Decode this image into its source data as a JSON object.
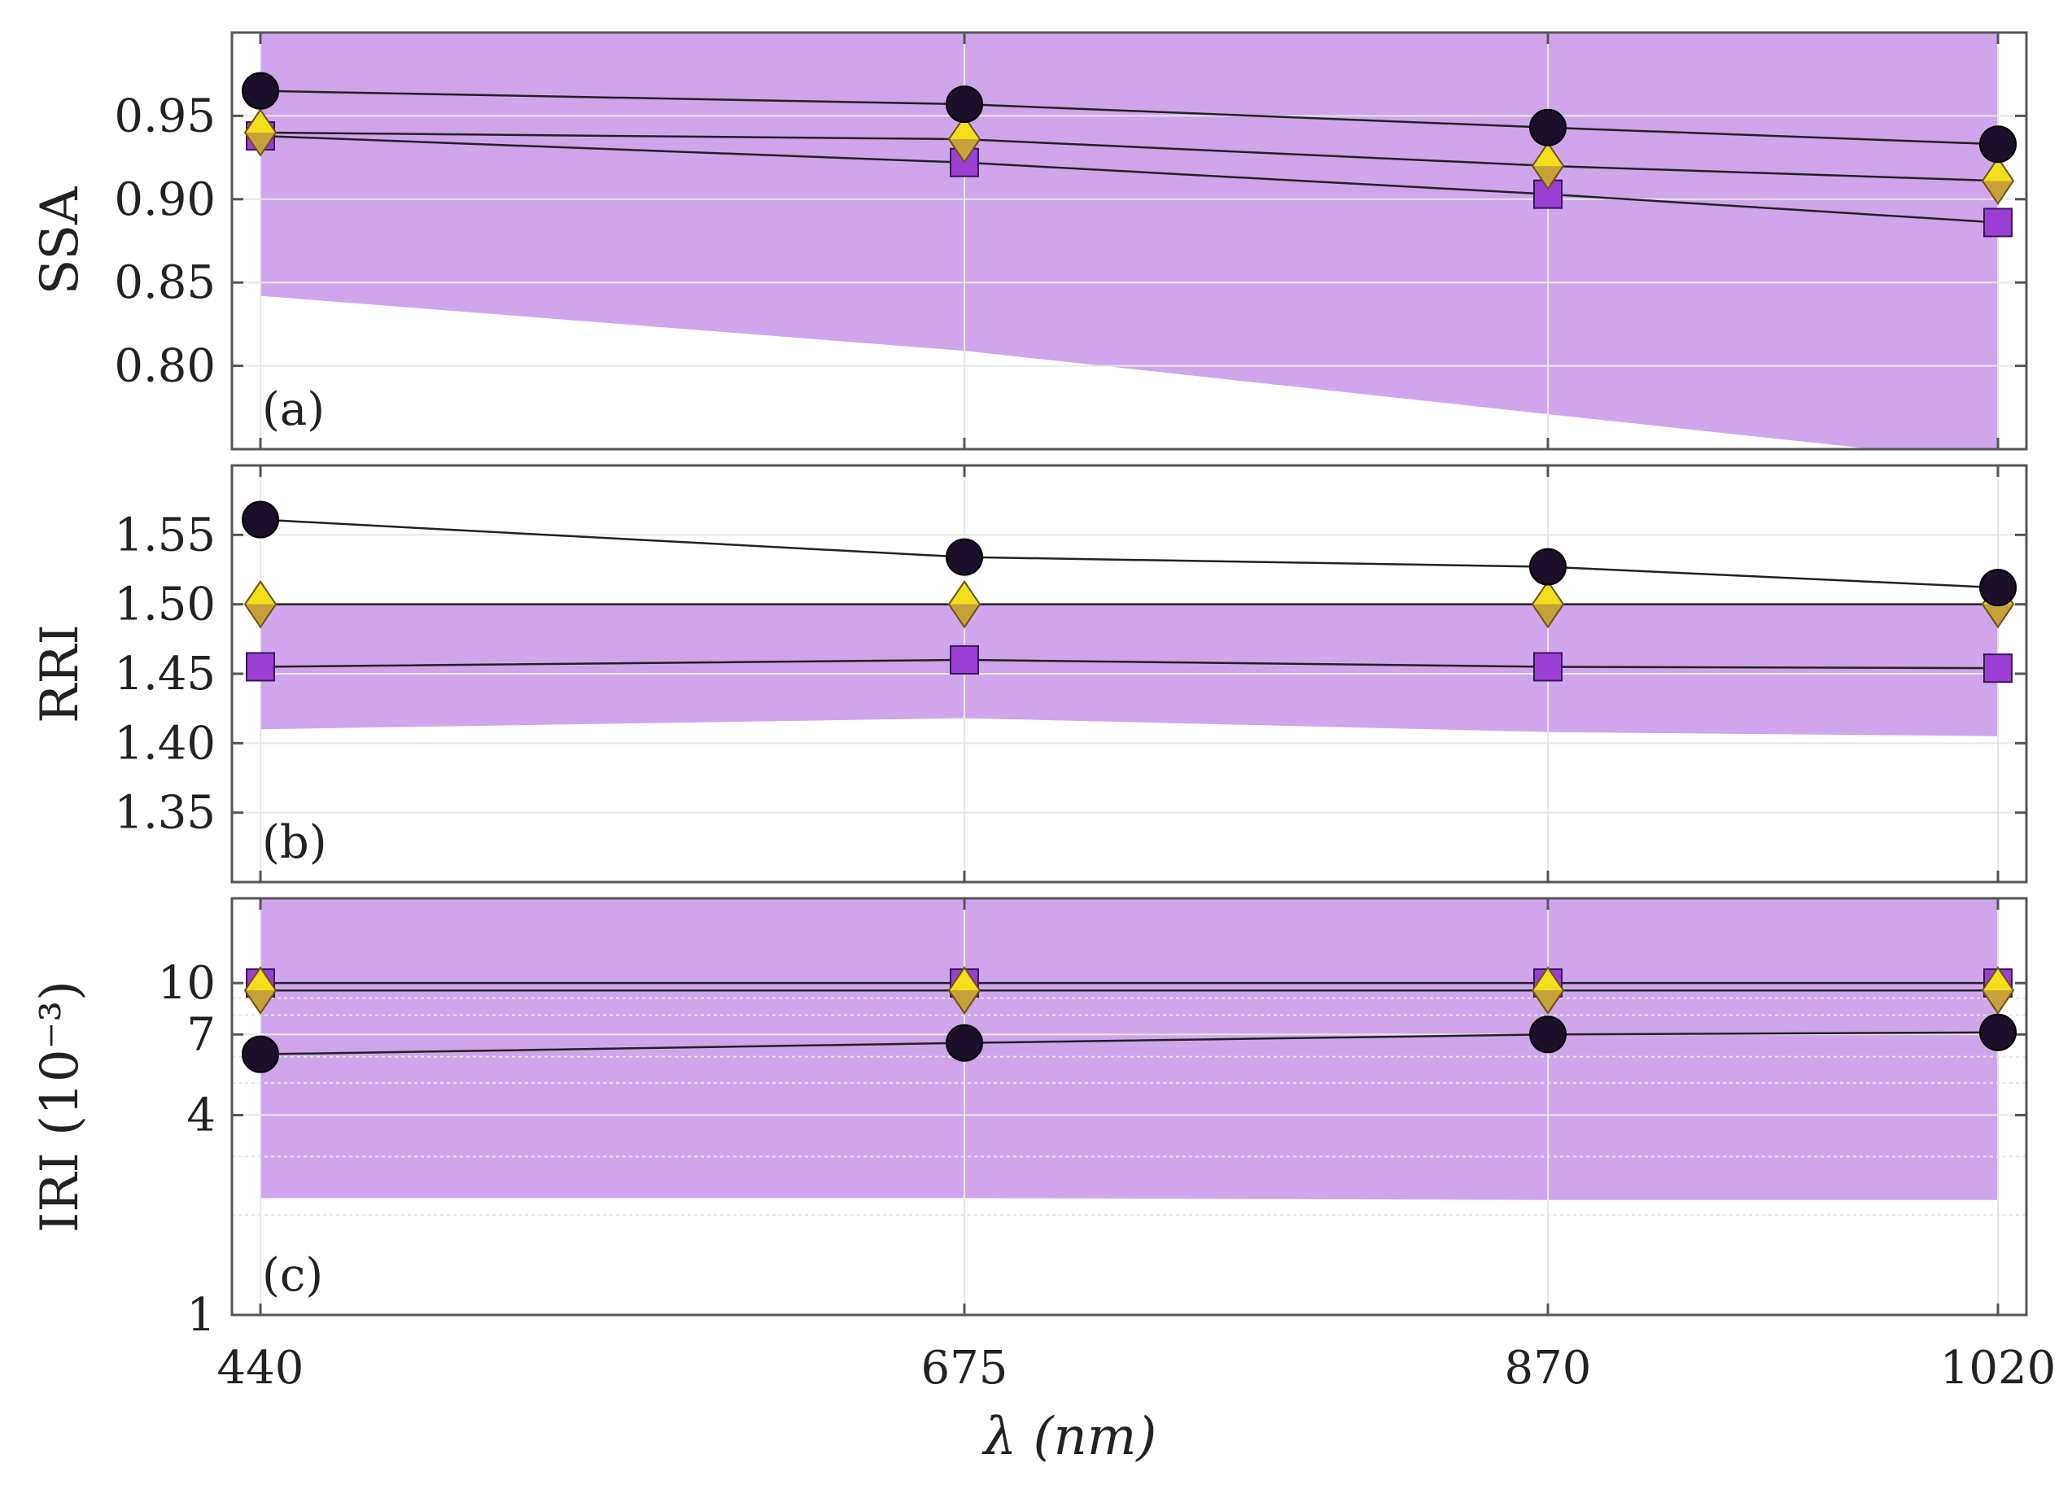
{
  "chart_data": {
    "type": "line",
    "shared_x": {
      "label": "λ (nm)",
      "values": [
        440,
        675,
        870,
        1020
      ],
      "tick_labels": [
        "440",
        "675",
        "870",
        "1020"
      ]
    },
    "colors": {
      "band": "#cfa6ec",
      "circle": "#1b0f2a",
      "square": "#9b3fd4",
      "diamond_top": "#f2de1a",
      "diamond_bottom": "#c9a13a",
      "line": "#222222"
    },
    "panels": [
      {
        "id": "ssa",
        "label": "(a)",
        "ylabel": "SSA",
        "scale": "linear",
        "ylim": [
          0.75,
          1.0
        ],
        "yticks": [
          0.8,
          0.85,
          0.9,
          0.95
        ],
        "ytick_labels": [
          "0.80",
          "0.85",
          "0.90",
          "0.95"
        ],
        "band": {
          "lower": [
            0.842,
            0.809,
            0.771,
            0.742
          ],
          "upper": [
            1.0,
            1.0,
            1.0,
            1.0
          ]
        },
        "series": [
          {
            "name": "circle",
            "marker": "circle",
            "values": [
              0.965,
              0.957,
              0.943,
              0.933
            ]
          },
          {
            "name": "diamond",
            "marker": "diamond",
            "values": [
              0.94,
              0.936,
              0.92,
              0.911
            ]
          },
          {
            "name": "square",
            "marker": "square",
            "values": [
              0.938,
              0.922,
              0.903,
              0.886
            ]
          }
        ]
      },
      {
        "id": "rri",
        "label": "(b)",
        "ylabel": "RRI",
        "scale": "linear",
        "ylim": [
          1.3,
          1.6
        ],
        "yticks": [
          1.35,
          1.4,
          1.45,
          1.5,
          1.55
        ],
        "ytick_labels": [
          "1.35",
          "1.40",
          "1.45",
          "1.50",
          "1.55"
        ],
        "band": {
          "lower": [
            1.41,
            1.418,
            1.408,
            1.405
          ],
          "upper": [
            1.5,
            1.5,
            1.5,
            1.5
          ]
        },
        "series": [
          {
            "name": "circle",
            "marker": "circle",
            "values": [
              1.561,
              1.534,
              1.527,
              1.512
            ]
          },
          {
            "name": "diamond",
            "marker": "diamond",
            "values": [
              1.5,
              1.5,
              1.5,
              1.5
            ]
          },
          {
            "name": "square",
            "marker": "square",
            "values": [
              1.455,
              1.46,
              1.455,
              1.454
            ]
          }
        ]
      },
      {
        "id": "iri",
        "label": "(c)",
        "ylabel": "IRI (10⁻³)",
        "scale": "log",
        "ylim": [
          1,
          18
        ],
        "yticks": [
          1,
          4,
          7,
          10
        ],
        "ytick_labels": [
          "1",
          "4",
          "7",
          "10"
        ],
        "minor_grid": [
          2,
          3,
          5,
          6,
          8,
          9
        ],
        "band": {
          "lower": [
            2.25,
            2.25,
            2.22,
            2.22
          ],
          "upper": [
            18,
            18,
            18,
            18
          ]
        },
        "series": [
          {
            "name": "circle",
            "marker": "circle",
            "values": [
              6.1,
              6.6,
              7.0,
              7.1
            ]
          },
          {
            "name": "diamond",
            "marker": "diamond",
            "values": [
              9.5,
              9.5,
              9.5,
              9.5
            ]
          },
          {
            "name": "square",
            "marker": "square",
            "values": [
              10.0,
              10.0,
              10.0,
              10.0
            ]
          }
        ]
      }
    ]
  }
}
